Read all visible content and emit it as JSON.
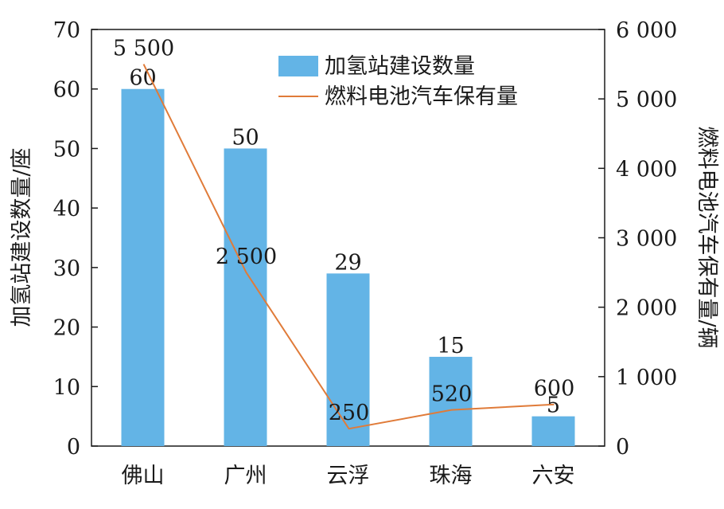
{
  "chart_data": {
    "type": "bar",
    "categories": [
      "佛山",
      "广州",
      "云浮",
      "珠海",
      "六安"
    ],
    "series": [
      {
        "name": "加氢站建设数量",
        "type": "bar",
        "axis": "left",
        "values": [
          60,
          50,
          29,
          15,
          5
        ],
        "labels": [
          "60",
          "50",
          "29",
          "15",
          "5"
        ],
        "color": "#63b4e6"
      },
      {
        "name": "燃料电池汽车保有量",
        "type": "line",
        "axis": "right",
        "values": [
          5500,
          2500,
          250,
          520,
          600
        ],
        "labels": [
          "5 500",
          "2 500",
          "250",
          "520",
          "600"
        ],
        "color": "#e07b39"
      }
    ],
    "left_axis": {
      "label": "加氢站建设数量/座",
      "min": 0,
      "max": 70,
      "ticks": [
        "0",
        "10",
        "20",
        "30",
        "40",
        "50",
        "60",
        "70"
      ]
    },
    "right_axis": {
      "label": "燃料电池汽车保有量/辆",
      "min": 0,
      "max": 6000,
      "ticks": [
        "0",
        "1 000",
        "2 000",
        "3 000",
        "4 000",
        "5 000",
        "6 000"
      ]
    },
    "legend": {
      "position": "top-right"
    },
    "grid": false
  }
}
